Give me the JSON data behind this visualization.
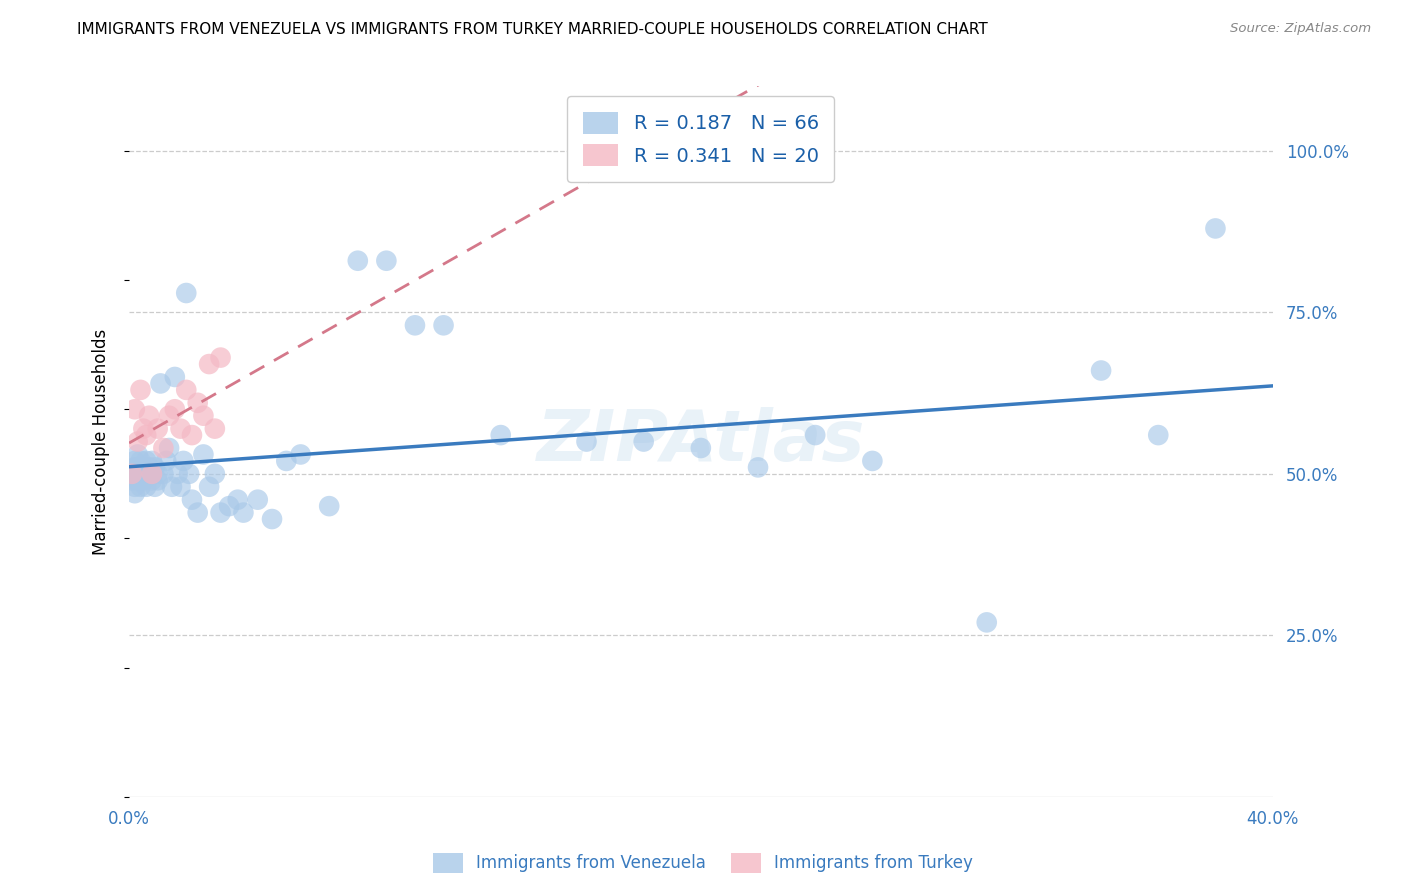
{
  "title": "IMMIGRANTS FROM VENEZUELA VS IMMIGRANTS FROM TURKEY MARRIED-COUPLE HOUSEHOLDS CORRELATION CHART",
  "source": "Source: ZipAtlas.com",
  "ylabel": "Married-couple Households",
  "xlim": [
    0.0,
    0.4
  ],
  "ylim": [
    0.0,
    1.1
  ],
  "xticks": [
    0.0,
    0.1,
    0.2,
    0.3,
    0.4
  ],
  "xtick_labels": [
    "0.0%",
    "",
    "",
    "",
    "40.0%"
  ],
  "ytick_labels_right": [
    "100.0%",
    "75.0%",
    "50.0%",
    "25.0%"
  ],
  "ytick_positions_right": [
    1.0,
    0.75,
    0.5,
    0.25
  ],
  "legend1_label": "R = 0.187   N = 66",
  "legend2_label": "R = 0.341   N = 20",
  "legend1_color": "#a8c8e8",
  "legend2_color": "#f4b8c4",
  "line1_color": "#3a7bbf",
  "line2_color": "#d4788a",
  "watermark": "ZIPAtlas",
  "venezuela_x": [
    0.001,
    0.001,
    0.002,
    0.002,
    0.002,
    0.002,
    0.003,
    0.003,
    0.003,
    0.003,
    0.004,
    0.004,
    0.004,
    0.005,
    0.005,
    0.005,
    0.006,
    0.006,
    0.007,
    0.007,
    0.008,
    0.008,
    0.009,
    0.009,
    0.01,
    0.01,
    0.011,
    0.012,
    0.013,
    0.014,
    0.015,
    0.016,
    0.017,
    0.018,
    0.019,
    0.02,
    0.021,
    0.022,
    0.024,
    0.026,
    0.028,
    0.03,
    0.032,
    0.035,
    0.038,
    0.04,
    0.045,
    0.05,
    0.055,
    0.06,
    0.07,
    0.08,
    0.09,
    0.1,
    0.11,
    0.13,
    0.16,
    0.18,
    0.2,
    0.22,
    0.24,
    0.26,
    0.3,
    0.34,
    0.36,
    0.38
  ],
  "venezuela_y": [
    0.5,
    0.49,
    0.51,
    0.48,
    0.52,
    0.47,
    0.51,
    0.5,
    0.49,
    0.53,
    0.5,
    0.48,
    0.52,
    0.51,
    0.49,
    0.5,
    0.52,
    0.48,
    0.51,
    0.5,
    0.49,
    0.52,
    0.48,
    0.51,
    0.5,
    0.49,
    0.64,
    0.5,
    0.52,
    0.54,
    0.48,
    0.65,
    0.5,
    0.48,
    0.52,
    0.78,
    0.5,
    0.46,
    0.44,
    0.53,
    0.48,
    0.5,
    0.44,
    0.45,
    0.46,
    0.44,
    0.46,
    0.43,
    0.52,
    0.53,
    0.45,
    0.83,
    0.83,
    0.73,
    0.73,
    0.56,
    0.55,
    0.55,
    0.54,
    0.51,
    0.56,
    0.52,
    0.27,
    0.66,
    0.56,
    0.88
  ],
  "turkey_x": [
    0.001,
    0.002,
    0.003,
    0.004,
    0.005,
    0.006,
    0.007,
    0.008,
    0.01,
    0.012,
    0.014,
    0.016,
    0.018,
    0.02,
    0.022,
    0.024,
    0.026,
    0.028,
    0.03,
    0.032
  ],
  "turkey_y": [
    0.5,
    0.6,
    0.55,
    0.63,
    0.57,
    0.56,
    0.59,
    0.5,
    0.57,
    0.54,
    0.59,
    0.6,
    0.57,
    0.63,
    0.56,
    0.61,
    0.59,
    0.67,
    0.57,
    0.68
  ]
}
